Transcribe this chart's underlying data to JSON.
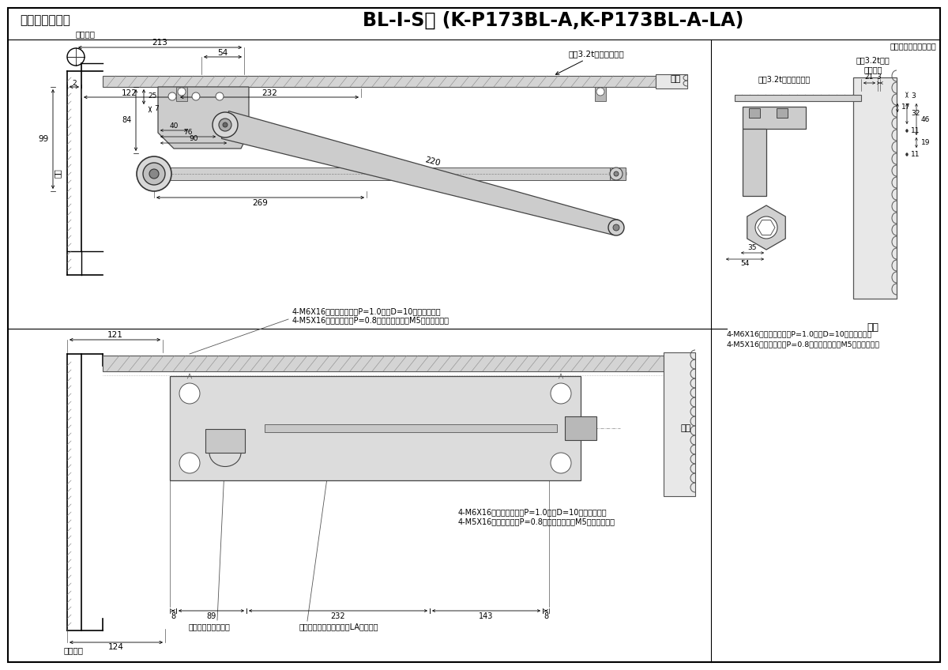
{
  "title_left": "段付ブラケット",
  "title_right": "BL-Ⅰ-S型 (K-P173BL-A,K-P173BL-A-LA)",
  "subtitle": "本図は左開きを示す。",
  "note1_top": "4-M6X16特丸皿小ネジ（P=1.0）（D=10）ステンレス",
  "note2_top": "4-M5X16丸皿小ネジ（P=0.8）ステンレス（M5仕様の場合）",
  "note1_bot": "4-M6X16特丸皿小ネジ（P=1.0）（D=10）ステンレス",
  "note2_bot": "4-M5X16丸皿小ネジ（P=0.8）ステンレス（M5仕様の場合）",
  "label_ura_top": "裏板3.2t以上（別途）",
  "label_ura_right1": "裏板3.2t以上（別途）",
  "label_ura_right2": "裏板3.2t以上\n（別途）",
  "label_door_top": "ドア",
  "label_door_bot": "ドア",
  "label_door_right": "ドア",
  "label_frame": "扉枠",
  "label_pivot_top": "ドア吊芯",
  "label_pivot_bot": "ドア吊芯",
  "label_valve1": "閉扉速度調整バルブ",
  "label_valve2": "ラッチング調整バルブ（LA付のみ）",
  "bg_color": "#ffffff"
}
